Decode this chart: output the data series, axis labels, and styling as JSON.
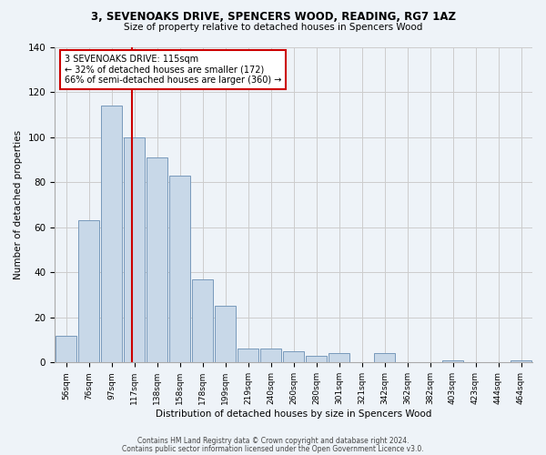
{
  "title1": "3, SEVENOAKS DRIVE, SPENCERS WOOD, READING, RG7 1AZ",
  "title2": "Size of property relative to detached houses in Spencers Wood",
  "xlabel": "Distribution of detached houses by size in Spencers Wood",
  "ylabel": "Number of detached properties",
  "bar_labels": [
    "56sqm",
    "76sqm",
    "97sqm",
    "117sqm",
    "138sqm",
    "158sqm",
    "178sqm",
    "199sqm",
    "219sqm",
    "240sqm",
    "260sqm",
    "280sqm",
    "301sqm",
    "321sqm",
    "342sqm",
    "362sqm",
    "382sqm",
    "403sqm",
    "423sqm",
    "444sqm",
    "464sqm"
  ],
  "bar_values": [
    12,
    63,
    114,
    100,
    91,
    83,
    37,
    25,
    6,
    6,
    5,
    3,
    4,
    0,
    4,
    0,
    0,
    1,
    0,
    0,
    1
  ],
  "bar_color": "#c8d8e8",
  "bar_edge_color": "#7799bb",
  "grid_color": "#cccccc",
  "bg_color": "#eef3f8",
  "annotation_text": "3 SEVENOAKS DRIVE: 115sqm\n← 32% of detached houses are smaller (172)\n66% of semi-detached houses are larger (360) →",
  "annotation_box_color": "#ffffff",
  "annotation_box_edge": "#cc0000",
  "property_line_color": "#cc0000",
  "ylim": [
    0,
    140
  ],
  "yticks": [
    0,
    20,
    40,
    60,
    80,
    100,
    120,
    140
  ],
  "footer1": "Contains HM Land Registry data © Crown copyright and database right 2024.",
  "footer2": "Contains public sector information licensed under the Open Government Licence v3.0."
}
